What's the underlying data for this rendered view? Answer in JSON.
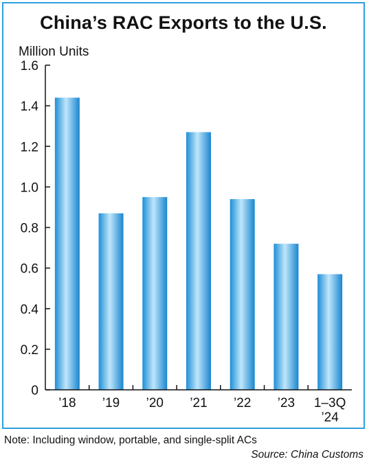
{
  "chart_data": {
    "type": "bar",
    "title": "China’s RAC Exports to the U.S.",
    "ylabel": "Million Units",
    "categories": [
      [
        "’18"
      ],
      [
        "’19"
      ],
      [
        "’20"
      ],
      [
        "’21"
      ],
      [
        "’22"
      ],
      [
        "’23"
      ],
      [
        "1–3Q",
        "’24"
      ]
    ],
    "values": [
      1.44,
      0.87,
      0.95,
      1.27,
      0.94,
      0.72,
      0.57
    ],
    "ylim": [
      0,
      1.6
    ],
    "yticks": [
      "0",
      "0.2",
      "0.4",
      "0.6",
      "0.8",
      "1.0",
      "1.2",
      "1.4",
      "1.6"
    ],
    "grid": false,
    "bar_color": "#3aa8e6"
  },
  "note": "Note: Including window, portable, and single-split ACs",
  "source": "Source: China Customs"
}
